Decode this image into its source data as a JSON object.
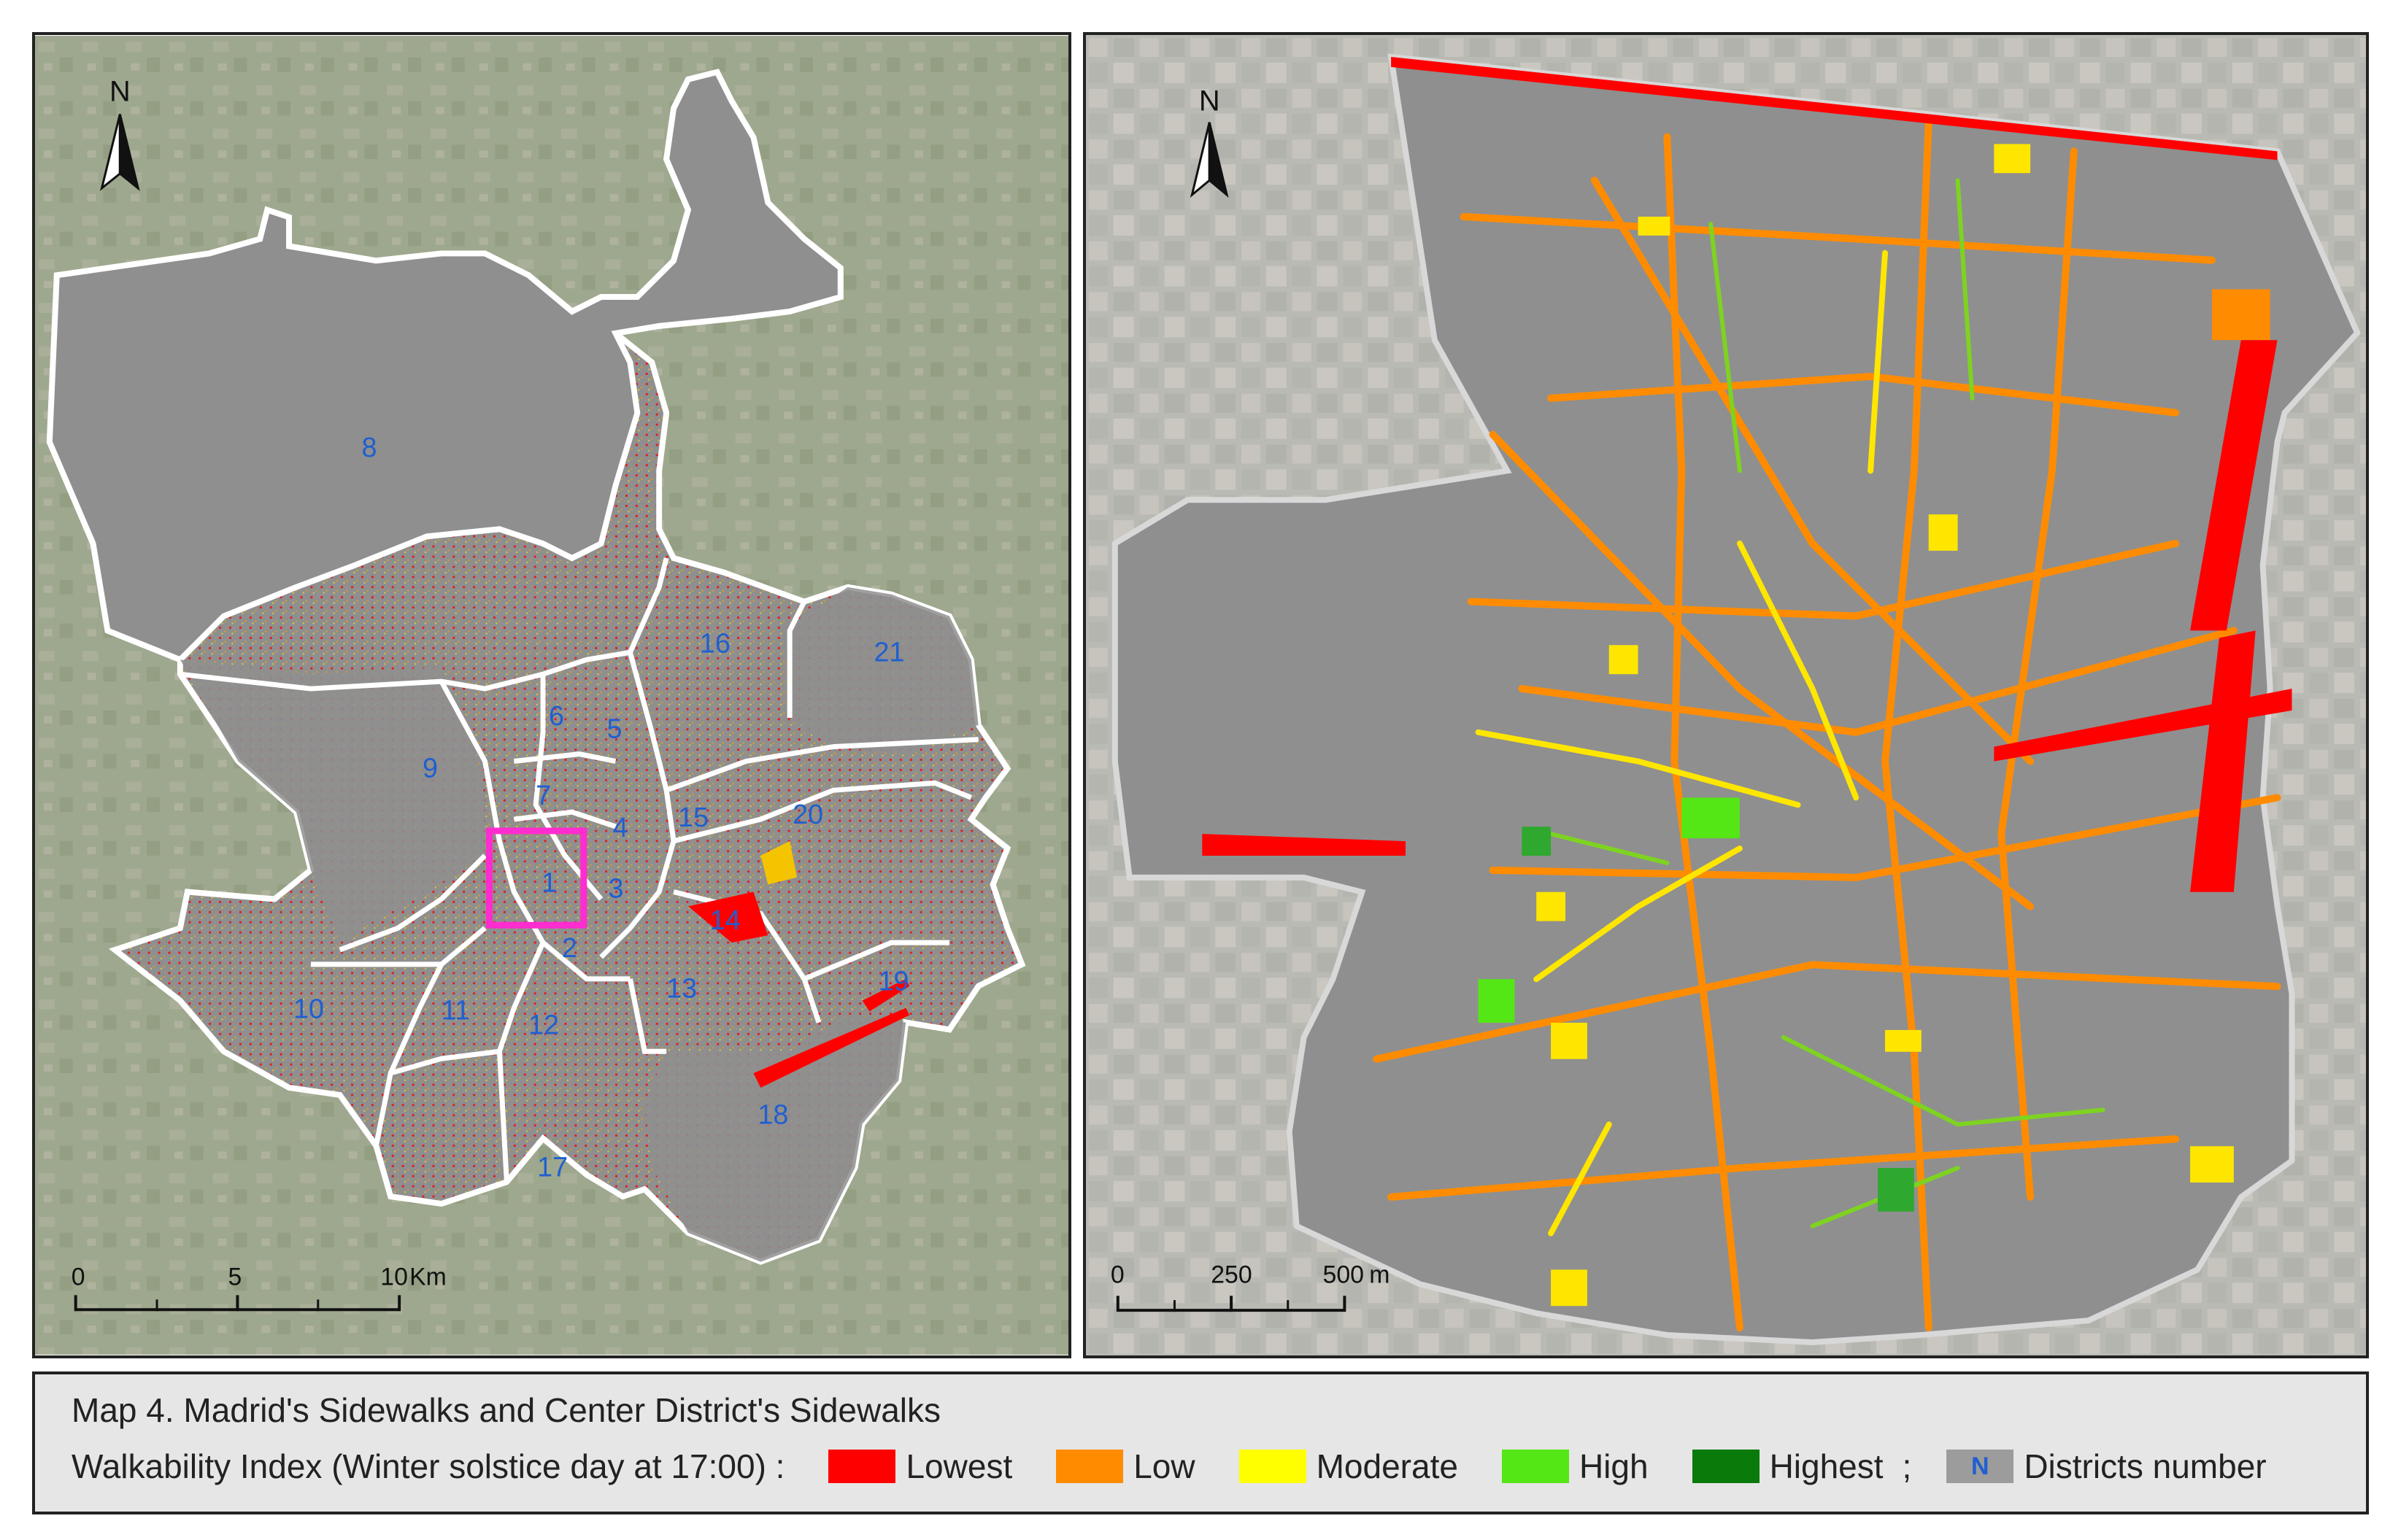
{
  "left_map": {
    "north_label": "N",
    "districts": [
      "1",
      "2",
      "3",
      "4",
      "5",
      "6",
      "7",
      "8",
      "9",
      "10",
      "11",
      "12",
      "13",
      "14",
      "15",
      "16",
      "17",
      "18",
      "19",
      "20",
      "21"
    ],
    "scale": {
      "ticks": [
        "0",
        "5",
        "10"
      ],
      "unit": "Km"
    }
  },
  "right_map": {
    "north_label": "N",
    "scale": {
      "ticks": [
        "0",
        "250",
        "500"
      ],
      "unit": "m"
    }
  },
  "legend": {
    "title": "Map 4. Madrid's Sidewalks and Center District's Sidewalks",
    "index_label": "Walkability Index (Winter solstice day at 17:00) :",
    "classes": [
      {
        "label": "Lowest",
        "color": "#ff0000"
      },
      {
        "label": "Low",
        "color": "#ff8c00"
      },
      {
        "label": "Moderate",
        "color": "#ffff00"
      },
      {
        "label": "High",
        "color": "#55e616"
      },
      {
        "label": "Highest",
        "color": "#0a7a0a"
      }
    ],
    "separator": ";",
    "district_swatch": {
      "letter": "N",
      "label": "Districts number",
      "color": "#9c9c9c"
    }
  },
  "colors": {
    "district_fill": "#8f8f8f",
    "boundary": "#ffffff",
    "highlight_box": "#ff2ccf",
    "aerial_left": "#9aa48a",
    "aerial_right": "#b6b6b0"
  }
}
